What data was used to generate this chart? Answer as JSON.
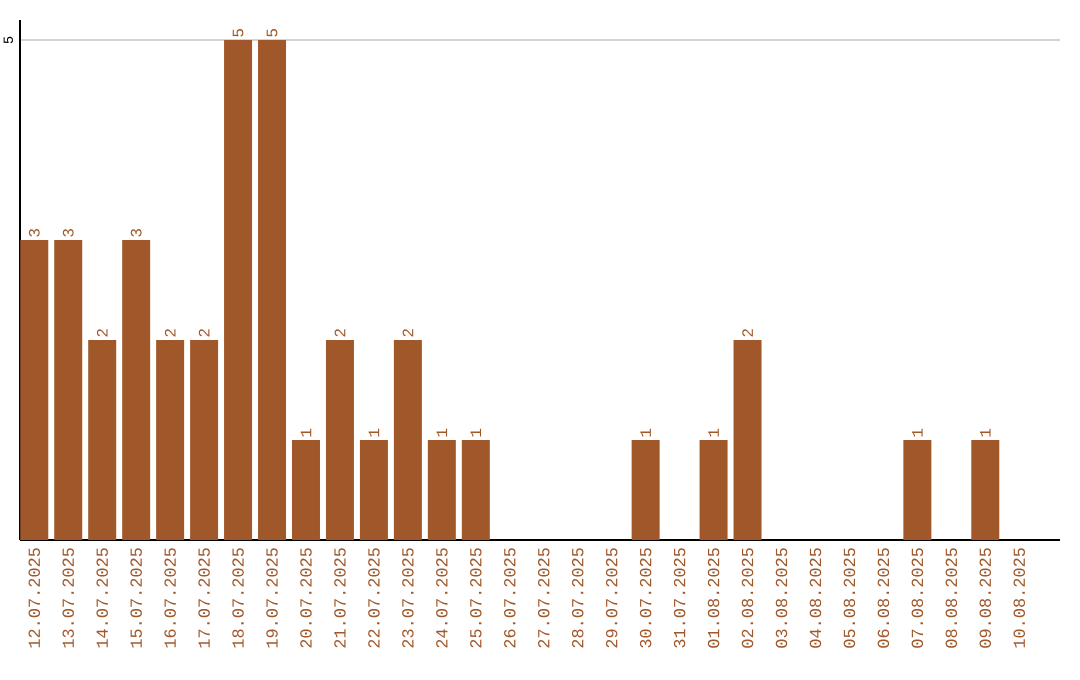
{
  "chart_data": {
    "type": "bar",
    "categories": [
      "12.07.2025",
      "13.07.2025",
      "14.07.2025",
      "15.07.2025",
      "16.07.2025",
      "17.07.2025",
      "18.07.2025",
      "19.07.2025",
      "20.07.2025",
      "21.07.2025",
      "22.07.2025",
      "23.07.2025",
      "24.07.2025",
      "25.07.2025",
      "26.07.2025",
      "27.07.2025",
      "28.07.2025",
      "29.07.2025",
      "30.07.2025",
      "31.07.2025",
      "01.08.2025",
      "02.08.2025",
      "03.08.2025",
      "04.08.2025",
      "05.08.2025",
      "06.08.2025",
      "07.08.2025",
      "08.08.2025",
      "09.08.2025",
      "10.08.2025"
    ],
    "values": [
      3,
      3,
      2,
      3,
      2,
      2,
      5,
      5,
      1,
      2,
      1,
      2,
      1,
      1,
      0,
      0,
      0,
      0,
      1,
      0,
      1,
      2,
      0,
      0,
      0,
      0,
      1,
      0,
      1,
      0
    ],
    "value_labels": [
      "3",
      "3",
      "2",
      "3",
      "2",
      "2",
      "5",
      "5",
      "1",
      "2",
      "1",
      "2",
      "1",
      "1",
      null,
      null,
      null,
      null,
      "1",
      null,
      "1",
      "2",
      null,
      null,
      null,
      null,
      "1",
      null,
      "1",
      null
    ],
    "color": "#a0582a",
    "ylim": [
      0,
      5.2
    ],
    "yticks": [
      5
    ],
    "grid": "y"
  }
}
